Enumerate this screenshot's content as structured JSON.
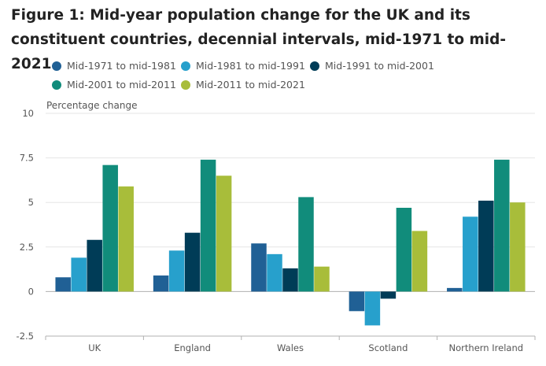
{
  "chart_data": {
    "type": "bar",
    "title": "Figure 1: Mid-year population change for the UK and its constituent countries, decennial intervals, mid-1971 to mid-2021",
    "ylabel": "Percentage change",
    "xlabel": "",
    "categories": [
      "UK",
      "England",
      "Wales",
      "Scotland",
      "Northern Ireland"
    ],
    "ylim": [
      -2.5,
      10
    ],
    "yticks": [
      "10",
      "7.5",
      "5",
      "2.5",
      "0",
      "-2.5"
    ],
    "ytick_values": [
      10,
      7.5,
      5,
      2.5,
      0,
      -2.5
    ],
    "grid": true,
    "legend_position": "top",
    "series": [
      {
        "name": "Mid-1971 to mid-1981",
        "color": "#206095",
        "values": [
          0.8,
          0.9,
          2.7,
          -1.1,
          0.2
        ]
      },
      {
        "name": "Mid-1981 to mid-1991",
        "color": "#27a0cc",
        "values": [
          1.9,
          2.3,
          2.1,
          -1.9,
          4.2
        ]
      },
      {
        "name": "Mid-1991 to mid-2001",
        "color": "#003c57",
        "values": [
          2.9,
          3.3,
          1.3,
          -0.4,
          5.1
        ]
      },
      {
        "name": "Mid-2001 to mid-2011",
        "color": "#118c7b",
        "values": [
          7.1,
          7.4,
          5.3,
          4.7,
          7.4
        ]
      },
      {
        "name": "Mid-2011 to mid-2021",
        "color": "#a8bd3a",
        "values": [
          5.9,
          6.5,
          1.4,
          3.4,
          5.0
        ]
      }
    ]
  }
}
